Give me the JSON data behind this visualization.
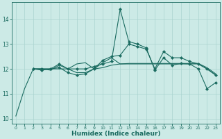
{
  "xlabel": "Humidex (Indice chaleur)",
  "background_color": "#cceae6",
  "grid_color": "#aad4d0",
  "line_color": "#1a6b60",
  "xlim": [
    -0.5,
    23.5
  ],
  "ylim": [
    9.8,
    14.7
  ],
  "xticks": [
    0,
    1,
    2,
    3,
    4,
    5,
    6,
    7,
    8,
    9,
    10,
    11,
    12,
    13,
    14,
    15,
    16,
    17,
    18,
    19,
    20,
    21,
    22,
    23
  ],
  "yticks": [
    10,
    11,
    12,
    13,
    14
  ],
  "lines": [
    {
      "x": [
        0,
        1,
        2,
        3,
        4,
        5,
        6,
        7,
        8,
        9,
        10,
        11,
        12,
        13,
        14,
        15,
        16,
        17,
        18,
        19,
        20,
        21,
        22,
        23
      ],
      "y": [
        10.1,
        11.2,
        12.0,
        12.0,
        12.0,
        12.0,
        12.0,
        11.85,
        11.85,
        12.0,
        12.05,
        12.15,
        12.2,
        12.22,
        12.22,
        12.22,
        12.22,
        12.22,
        12.22,
        12.22,
        12.22,
        12.22,
        12.05,
        11.8
      ],
      "marker": null
    },
    {
      "x": [
        2,
        3,
        4,
        5,
        6,
        7,
        8,
        9,
        10,
        11,
        12,
        13,
        14,
        15,
        16,
        17,
        18,
        19,
        20,
        21,
        22,
        23
      ],
      "y": [
        12.0,
        12.0,
        11.95,
        12.15,
        12.0,
        12.2,
        12.25,
        12.0,
        12.25,
        12.45,
        12.2,
        12.2,
        12.2,
        12.2,
        12.2,
        12.2,
        12.2,
        12.2,
        12.2,
        12.2,
        12.0,
        11.75
      ],
      "marker": null
    },
    {
      "x": [
        2,
        3,
        4,
        5,
        6,
        7,
        8,
        9,
        10,
        11,
        12,
        13,
        14,
        15,
        16,
        17,
        18,
        19,
        20,
        21,
        22,
        23
      ],
      "y": [
        12.0,
        12.0,
        12.0,
        12.2,
        12.0,
        12.0,
        12.0,
        12.1,
        12.2,
        12.3,
        14.4,
        13.1,
        13.0,
        12.85,
        11.95,
        12.45,
        12.15,
        12.22,
        12.2,
        12.0,
        11.2,
        11.45
      ],
      "marker": "D"
    },
    {
      "x": [
        2,
        3,
        4,
        5,
        6,
        7,
        8,
        9,
        10,
        11,
        12,
        13,
        14,
        15,
        16,
        17,
        18,
        19,
        20,
        21,
        22,
        23
      ],
      "y": [
        12.0,
        11.95,
        12.0,
        12.05,
        11.85,
        11.75,
        11.8,
        12.0,
        12.35,
        12.5,
        12.55,
        13.0,
        12.9,
        12.8,
        12.0,
        12.7,
        12.45,
        12.45,
        12.3,
        12.2,
        12.0,
        11.75
      ],
      "marker": "D"
    }
  ]
}
